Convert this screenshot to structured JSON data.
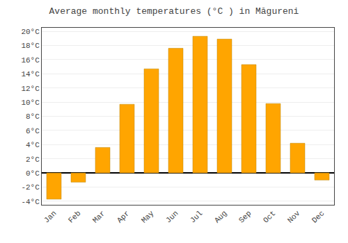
{
  "chart_data": {
    "type": "bar",
    "title": "Average monthly temperatures (°C ) in Măgureni",
    "categories": [
      "Jan",
      "Feb",
      "Mar",
      "Apr",
      "May",
      "Jun",
      "Jul",
      "Aug",
      "Sep",
      "Oct",
      "Nov",
      "Dec"
    ],
    "values": [
      -3.7,
      -1.3,
      3.6,
      9.7,
      14.7,
      17.6,
      19.3,
      18.9,
      15.3,
      9.8,
      4.2,
      -1.0
    ],
    "color": "#FFA500",
    "ylim": [
      -4.5,
      20.5
    ],
    "yticks": [
      {
        "value": -4,
        "label": "-4°C"
      },
      {
        "value": -2,
        "label": "-2°C"
      },
      {
        "value": 0,
        "label": "0°C"
      },
      {
        "value": 2,
        "label": "2°C"
      },
      {
        "value": 4,
        "label": "4°C"
      },
      {
        "value": 6,
        "label": "6°C"
      },
      {
        "value": 8,
        "label": "8°C"
      },
      {
        "value": 10,
        "label": "10°C"
      },
      {
        "value": 12,
        "label": "12°C"
      },
      {
        "value": 14,
        "label": "14°C"
      },
      {
        "value": 16,
        "label": "16°C"
      },
      {
        "value": 18,
        "label": "18°C"
      },
      {
        "value": 20,
        "label": "20°C"
      }
    ],
    "grid": true
  }
}
